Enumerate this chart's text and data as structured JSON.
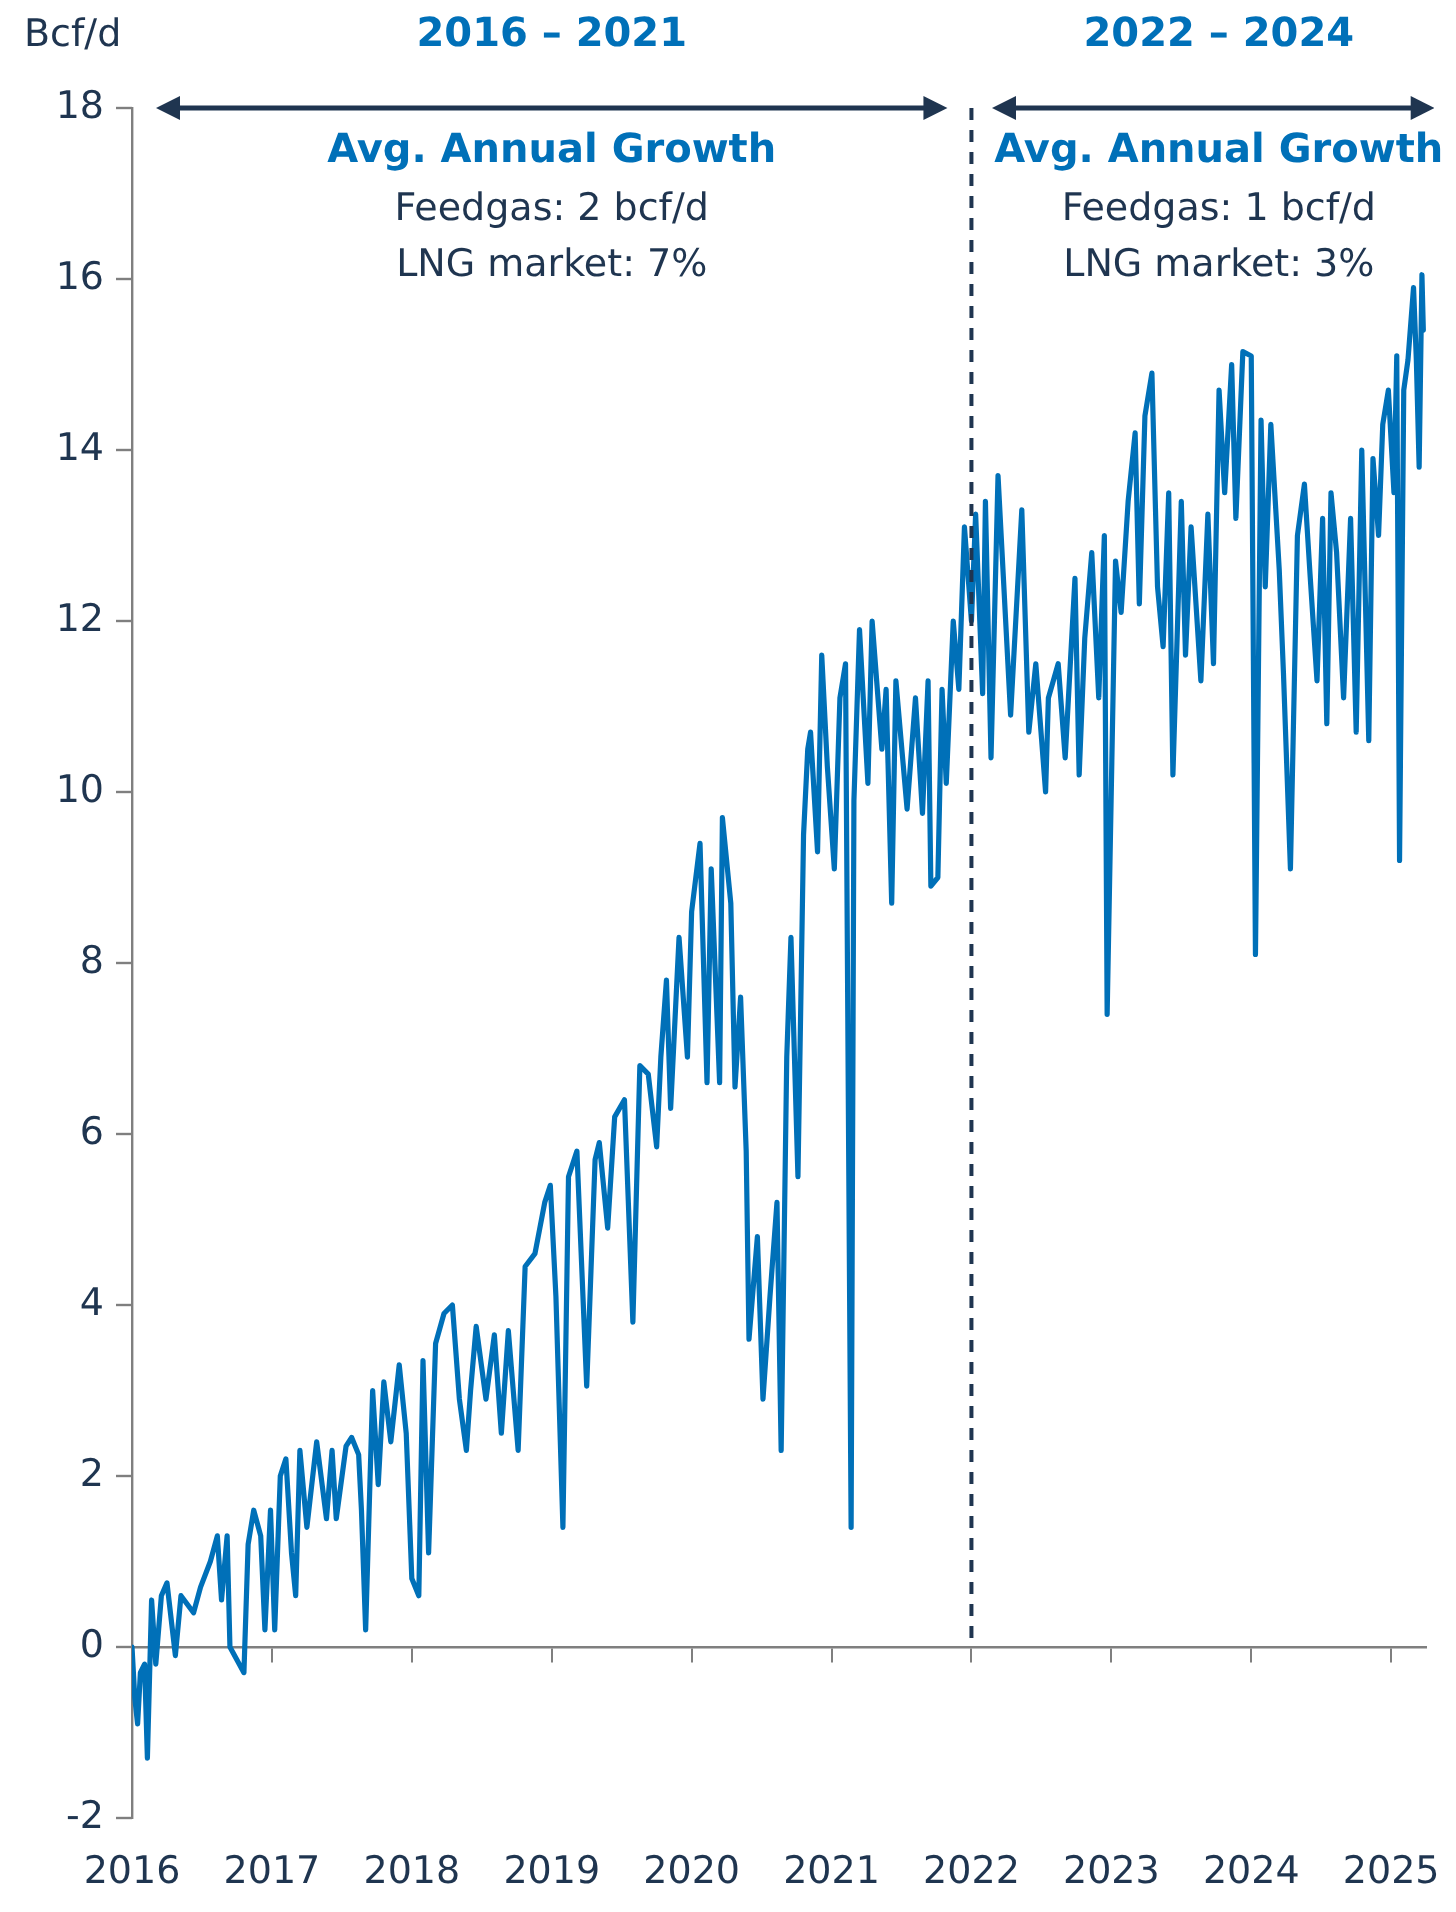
{
  "chart_data": {
    "type": "line",
    "ylabel": "Bcf/d",
    "xlim": [
      2016,
      2025.25
    ],
    "xticks": [
      2016,
      2017,
      2018,
      2019,
      2020,
      2021,
      2022,
      2023,
      2024,
      2025
    ],
    "ylim": [
      -2,
      18
    ],
    "yticks": [
      -2,
      0,
      2,
      4,
      6,
      8,
      10,
      12,
      14,
      16,
      18
    ],
    "legend": false,
    "marker": "none",
    "line_style": "solid",
    "ref_lines": [
      {
        "axis": "x",
        "value": 2022,
        "label": null,
        "color": "#1f3550",
        "line_style": "dashed"
      }
    ],
    "annotations": [
      "2016 – 2021",
      "Avg. Annual Growth",
      "Feedgas: 2 bcf/d",
      "LNG market: 7%",
      "2022 – 2024",
      "Avg. Annual Growth",
      "Feedgas: 1 bcf/d",
      "LNG market: 3%"
    ],
    "x": [
      2016.0,
      2016.02,
      2016.04,
      2016.06,
      2016.09,
      2016.11,
      2016.14,
      2016.17,
      2016.21,
      2016.25,
      2016.31,
      2016.35,
      2016.44,
      2016.49,
      2016.56,
      2016.61,
      2016.64,
      2016.68,
      2016.7,
      2016.8,
      2016.83,
      2016.87,
      2016.92,
      2016.95,
      2016.99,
      2017.02,
      2017.06,
      2017.1,
      2017.14,
      2017.17,
      2017.2,
      2017.25,
      2017.32,
      2017.39,
      2017.43,
      2017.46,
      2017.53,
      2017.57,
      2017.62,
      2017.64,
      2017.67,
      2017.72,
      2017.76,
      2017.8,
      2017.85,
      2017.91,
      2017.96,
      2018.0,
      2018.05,
      2018.08,
      2018.12,
      2018.17,
      2018.23,
      2018.29,
      2018.34,
      2018.39,
      2018.42,
      2018.46,
      2018.53,
      2018.59,
      2018.64,
      2018.69,
      2018.76,
      2018.81,
      2018.88,
      2018.95,
      2018.99,
      2019.03,
      2019.08,
      2019.12,
      2019.18,
      2019.25,
      2019.31,
      2019.34,
      2019.4,
      2019.45,
      2019.52,
      2019.58,
      2019.63,
      2019.69,
      2019.75,
      2019.78,
      2019.82,
      2019.85,
      2019.91,
      2019.97,
      2020.0,
      2020.06,
      2020.11,
      2020.14,
      2020.2,
      2020.22,
      2020.28,
      2020.31,
      2020.35,
      2020.39,
      2020.41,
      2020.47,
      2020.51,
      2020.56,
      2020.61,
      2020.64,
      2020.68,
      2020.71,
      2020.76,
      2020.8,
      2020.83,
      2020.85,
      2020.9,
      2020.93,
      2020.97,
      2021.02,
      2021.06,
      2021.1,
      2021.12,
      2021.14,
      2021.16,
      2021.2,
      2021.26,
      2021.29,
      2021.36,
      2021.39,
      2021.43,
      2021.46,
      2021.54,
      2021.6,
      2021.65,
      2021.69,
      2021.71,
      2021.76,
      2021.79,
      2021.82,
      2021.87,
      2021.91,
      2021.95,
      2022.0,
      2022.03,
      2022.08,
      2022.1,
      2022.14,
      2022.19,
      2022.28,
      2022.36,
      2022.41,
      2022.46,
      2022.53,
      2022.55,
      2022.62,
      2022.67,
      2022.74,
      2022.77,
      2022.81,
      2022.86,
      2022.91,
      2022.95,
      2022.97,
      2023.03,
      2023.07,
      2023.12,
      2023.17,
      2023.2,
      2023.24,
      2023.29,
      2023.33,
      2023.37,
      2023.41,
      2023.44,
      2023.5,
      2023.53,
      2023.57,
      2023.64,
      2023.69,
      2023.73,
      2023.77,
      2023.81,
      2023.86,
      2023.89,
      2023.94,
      2024.0,
      2024.03,
      2024.07,
      2024.1,
      2024.14,
      2024.2,
      2024.23,
      2024.28,
      2024.33,
      2024.38,
      2024.42,
      2024.47,
      2024.51,
      2024.54,
      2024.57,
      2024.61,
      2024.66,
      2024.71,
      2024.75,
      2024.79,
      2024.84,
      2024.87,
      2024.91,
      2024.94,
      2024.98,
      2025.02,
      2025.04,
      2025.06,
      2025.09,
      2025.12,
      2025.16,
      2025.18,
      2025.2,
      2025.22,
      2025.23
    ],
    "series": [
      {
        "color": "#0070b8",
        "values": [
          0.0,
          -0.6,
          -0.9,
          -0.3,
          -0.2,
          -1.3,
          0.55,
          -0.2,
          0.6,
          0.75,
          -0.1,
          0.6,
          0.4,
          0.7,
          1.0,
          1.3,
          0.55,
          1.3,
          0.0,
          -0.3,
          1.2,
          1.6,
          1.3,
          0.2,
          1.6,
          0.2,
          2.0,
          2.2,
          1.1,
          0.6,
          2.3,
          1.4,
          2.4,
          1.5,
          2.3,
          1.5,
          2.35,
          2.45,
          2.25,
          1.6,
          0.2,
          3.0,
          1.9,
          3.1,
          2.4,
          3.3,
          2.5,
          0.8,
          0.6,
          3.35,
          1.1,
          3.55,
          3.9,
          4.0,
          2.9,
          2.3,
          3.0,
          3.75,
          2.9,
          3.65,
          2.5,
          3.7,
          2.3,
          4.45,
          4.6,
          5.2,
          5.4,
          4.1,
          1.4,
          5.5,
          5.8,
          3.05,
          5.7,
          5.9,
          4.9,
          6.2,
          6.4,
          3.8,
          6.8,
          6.7,
          5.85,
          6.9,
          7.8,
          6.3,
          8.3,
          6.9,
          8.6,
          9.4,
          6.6,
          9.1,
          6.6,
          9.7,
          8.7,
          6.55,
          7.6,
          5.8,
          3.6,
          4.8,
          2.9,
          4.1,
          5.2,
          2.3,
          6.9,
          8.3,
          5.5,
          9.5,
          10.5,
          10.7,
          9.3,
          11.6,
          10.3,
          9.1,
          11.1,
          11.5,
          6.4,
          1.4,
          9.9,
          11.9,
          10.1,
          12.0,
          10.5,
          11.2,
          8.7,
          11.3,
          9.8,
          11.1,
          9.75,
          11.3,
          8.9,
          9.0,
          11.2,
          10.1,
          12.0,
          11.2,
          13.1,
          12.0,
          13.25,
          11.15,
          13.4,
          10.4,
          13.7,
          10.9,
          13.3,
          10.7,
          11.5,
          10.0,
          11.1,
          11.5,
          10.4,
          12.5,
          10.2,
          11.8,
          12.8,
          11.1,
          13.0,
          7.4,
          12.7,
          12.1,
          13.4,
          14.2,
          12.2,
          14.4,
          14.9,
          12.4,
          11.7,
          13.5,
          10.2,
          13.4,
          11.6,
          13.1,
          11.3,
          13.25,
          11.5,
          14.7,
          13.5,
          15.0,
          13.2,
          15.15,
          15.1,
          8.1,
          14.35,
          12.4,
          14.3,
          12.6,
          11.4,
          9.1,
          13.0,
          13.6,
          12.55,
          11.3,
          13.2,
          10.8,
          13.5,
          12.8,
          11.1,
          13.2,
          10.7,
          14.0,
          10.6,
          13.9,
          13.0,
          14.3,
          14.7,
          13.5,
          15.1,
          9.2,
          14.7,
          15.05,
          15.9,
          15.05,
          13.8,
          16.05,
          15.4
        ]
      }
    ]
  }
}
